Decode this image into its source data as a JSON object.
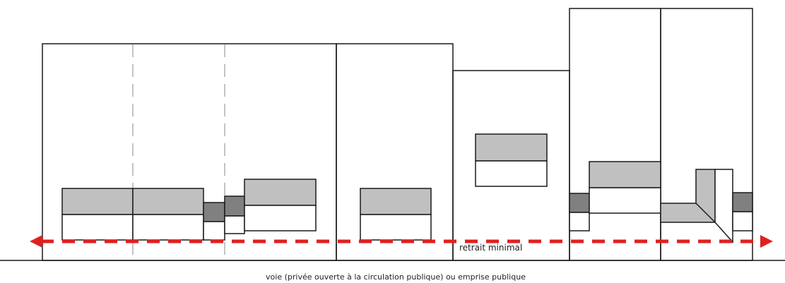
{
  "labels": {
    "setback": "retrait minimal",
    "road": "voie (privée ouverte à la circulation publique) ou emprise publique"
  },
  "colors": {
    "outline": "#1a1a1a",
    "light_grey": "#c0c0c0",
    "dark_grey": "#808080",
    "dashed_boundary": "#b0b0b0",
    "setback_arrow": "#e02020"
  }
}
